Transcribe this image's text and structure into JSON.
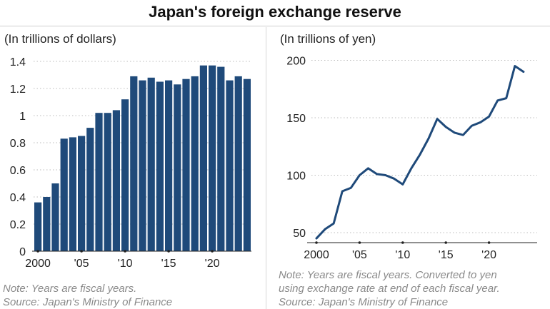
{
  "title": "Japan's foreign exchange reserve",
  "left": {
    "unit": "(In trillions of dollars)",
    "note_lines": [
      "Note: Years are fiscal years.",
      "Source: Japan's Ministry of Finance"
    ]
  },
  "right": {
    "unit": "(In trillions of yen)",
    "note_lines": [
      "Note: Years are fiscal years. Converted to yen",
      "using exchange rate at end of each fiscal year.",
      "Source: Japan's Ministry of Finance"
    ]
  },
  "colors": {
    "bar": "#1f4a7a",
    "line": "#1f4a7a",
    "grid": "#bdbdbd"
  },
  "chart_data": [
    {
      "type": "bar",
      "title": "",
      "ylabel": "(In trillions of dollars)",
      "x": [
        2000,
        2001,
        2002,
        2003,
        2004,
        2005,
        2006,
        2007,
        2008,
        2009,
        2010,
        2011,
        2012,
        2013,
        2014,
        2015,
        2016,
        2017,
        2018,
        2019,
        2020,
        2021,
        2022,
        2023,
        2024
      ],
      "values": [
        0.36,
        0.4,
        0.5,
        0.83,
        0.84,
        0.85,
        0.91,
        1.02,
        1.02,
        1.04,
        1.12,
        1.29,
        1.26,
        1.28,
        1.25,
        1.26,
        1.23,
        1.27,
        1.29,
        1.37,
        1.37,
        1.36,
        1.26,
        1.29,
        1.27
      ],
      "xticks": [
        {
          "v": 2000,
          "label": "2000"
        },
        {
          "v": 2005,
          "label": "'05"
        },
        {
          "v": 2010,
          "label": "'10"
        },
        {
          "v": 2015,
          "label": "'15"
        },
        {
          "v": 2020,
          "label": "'20"
        }
      ],
      "yticks": [
        {
          "v": 0,
          "label": "0"
        },
        {
          "v": 0.2,
          "label": "0.2"
        },
        {
          "v": 0.4,
          "label": "0.4"
        },
        {
          "v": 0.6,
          "label": "0.6"
        },
        {
          "v": 0.8,
          "label": "0.8"
        },
        {
          "v": 1,
          "label": "1"
        },
        {
          "v": 1.2,
          "label": "1.2"
        },
        {
          "v": 1.4,
          "label": "1.4"
        }
      ],
      "ylim": [
        0,
        1.4
      ],
      "grid": true
    },
    {
      "type": "line",
      "title": "",
      "ylabel": "(In trillions of yen)",
      "x": [
        2000,
        2001,
        2002,
        2003,
        2004,
        2005,
        2006,
        2007,
        2008,
        2009,
        2010,
        2011,
        2012,
        2013,
        2014,
        2015,
        2016,
        2017,
        2018,
        2019,
        2020,
        2021,
        2022,
        2023,
        2024
      ],
      "values": [
        45,
        53,
        58,
        86,
        89,
        100,
        106,
        101,
        100,
        97,
        92,
        106,
        118,
        132,
        149,
        142,
        137,
        135,
        143,
        146,
        151,
        165,
        167,
        195,
        190
      ],
      "xticks": [
        {
          "v": 2000,
          "label": "2000"
        },
        {
          "v": 2005,
          "label": "'05"
        },
        {
          "v": 2010,
          "label": "'10"
        },
        {
          "v": 2015,
          "label": "'15"
        },
        {
          "v": 2020,
          "label": "'20"
        }
      ],
      "yticks": [
        {
          "v": 50,
          "label": "50"
        },
        {
          "v": 100,
          "label": "100"
        },
        {
          "v": 150,
          "label": "150"
        },
        {
          "v": 200,
          "label": "200"
        }
      ],
      "ylim": [
        40,
        200
      ],
      "grid": true
    }
  ]
}
